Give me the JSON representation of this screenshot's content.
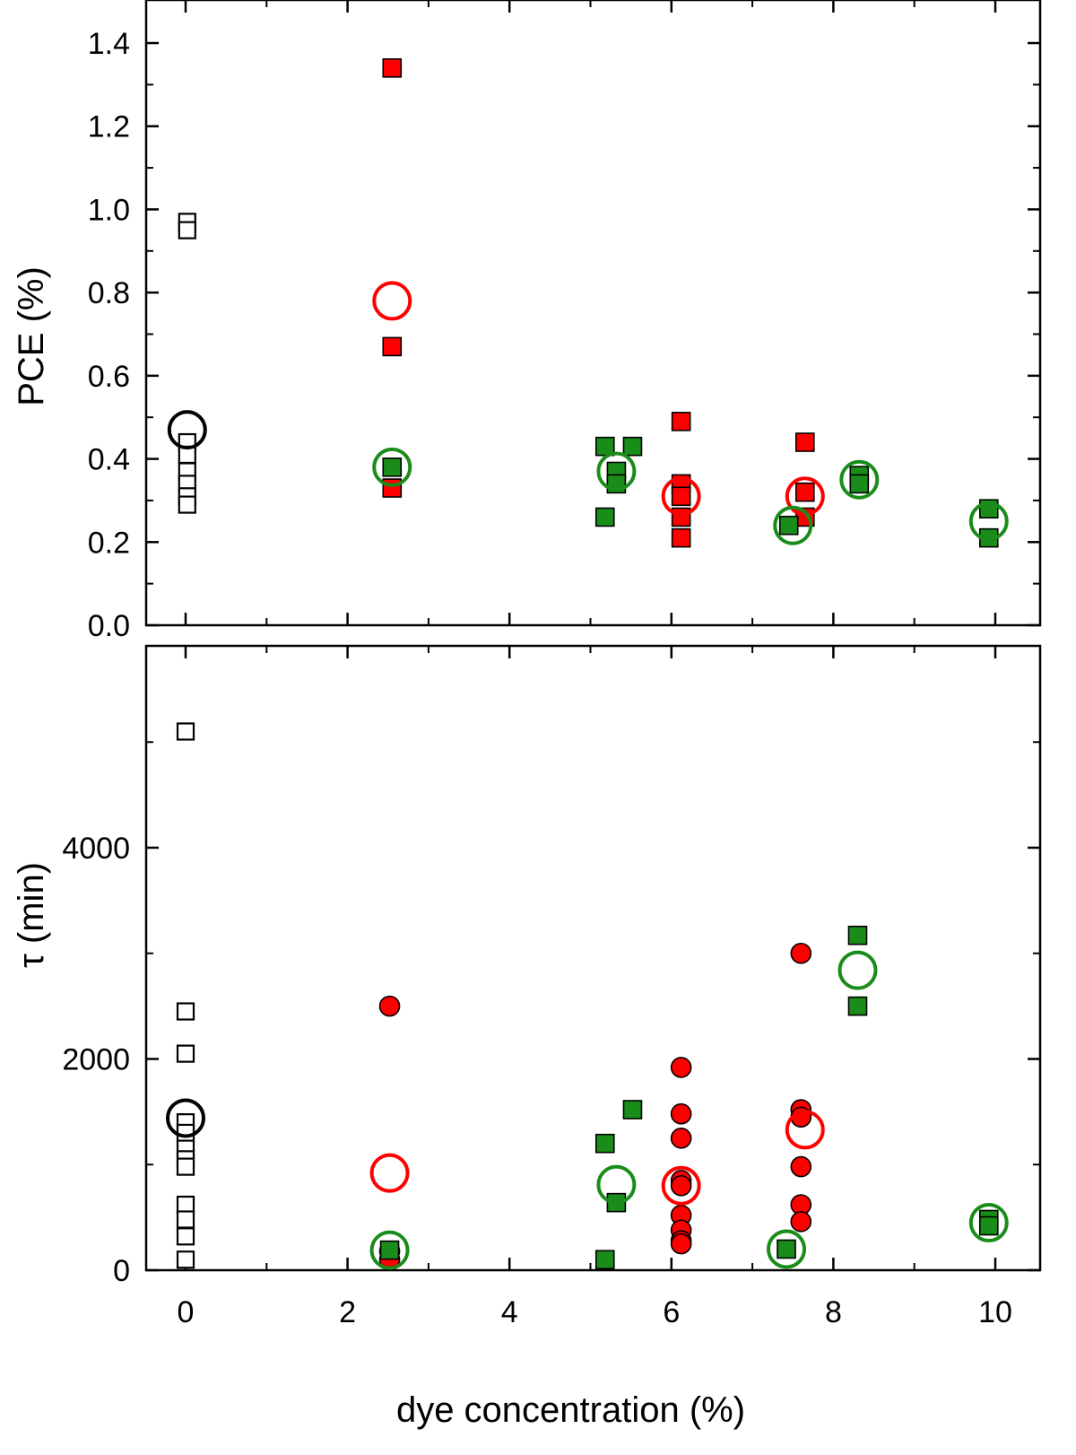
{
  "chart_data": [
    {
      "type": "scatter",
      "panel": "top",
      "title": "",
      "xlabel": "",
      "ylabel": "PCE  (%)",
      "xlim": [
        -0.5,
        10.6
      ],
      "ylim": [
        0.0,
        1.5
      ],
      "xticks": [
        0,
        2,
        4,
        6,
        8,
        10
      ],
      "xtick_labels": [
        "",
        "",
        "",
        "",
        "",
        ""
      ],
      "yticks": [
        0.0,
        0.2,
        0.4,
        0.6,
        0.8,
        1.0,
        1.2,
        1.4
      ],
      "ytick_labels": [
        "0.0",
        "0.2",
        "0.4",
        "0.6",
        "0.8",
        "1.0",
        "1.2",
        "1.4"
      ],
      "grid": false,
      "colors": {
        "black": "#000000",
        "red": "#ff0000",
        "green": "#1a8c1a"
      },
      "series": [
        {
          "marker": "open-square",
          "color": "#000000",
          "points": [
            [
              0.02,
              0.97
            ],
            [
              0.02,
              0.95
            ],
            [
              0.02,
              0.44
            ],
            [
              0.02,
              0.41
            ],
            [
              0.02,
              0.37
            ],
            [
              0.02,
              0.34
            ],
            [
              0.02,
              0.31
            ],
            [
              0.02,
              0.29
            ]
          ]
        },
        {
          "marker": "open-circle-large",
          "color": "#000000",
          "points": [
            [
              0.02,
              0.47
            ]
          ]
        },
        {
          "marker": "filled-square",
          "color": "#ff0000",
          "points": [
            [
              2.55,
              1.34
            ],
            [
              2.55,
              0.67
            ],
            [
              2.55,
              0.33
            ],
            [
              6.12,
              0.49
            ],
            [
              6.12,
              0.34
            ],
            [
              6.12,
              0.31
            ],
            [
              6.12,
              0.26
            ],
            [
              6.12,
              0.21
            ],
            [
              7.65,
              0.44
            ],
            [
              7.65,
              0.32
            ],
            [
              7.65,
              0.26
            ]
          ]
        },
        {
          "marker": "open-circle-large",
          "color": "#ff0000",
          "points": [
            [
              2.55,
              0.78
            ],
            [
              6.12,
              0.31
            ],
            [
              7.65,
              0.31
            ]
          ]
        },
        {
          "marker": "filled-square",
          "color": "#1a8c1a",
          "points": [
            [
              2.55,
              0.38
            ],
            [
              5.18,
              0.43
            ],
            [
              5.18,
              0.26
            ],
            [
              5.32,
              0.37
            ],
            [
              5.32,
              0.34
            ],
            [
              5.52,
              0.43
            ],
            [
              7.45,
              0.24
            ],
            [
              8.32,
              0.36
            ],
            [
              8.32,
              0.34
            ],
            [
              9.92,
              0.28
            ],
            [
              9.92,
              0.21
            ]
          ]
        },
        {
          "marker": "open-circle-large",
          "color": "#1a8c1a",
          "points": [
            [
              2.55,
              0.38
            ],
            [
              5.32,
              0.37
            ],
            [
              7.5,
              0.24
            ],
            [
              8.32,
              0.35
            ],
            [
              9.92,
              0.25
            ]
          ]
        }
      ]
    },
    {
      "type": "scatter",
      "panel": "bottom",
      "title": "",
      "xlabel": "dye concentration (%)",
      "ylabel": "τ  (min)",
      "xlim": [
        -0.5,
        10.6
      ],
      "ylim": [
        0,
        5700
      ],
      "xticks": [
        0,
        2,
        4,
        6,
        8,
        10
      ],
      "xtick_labels": [
        "0",
        "2",
        "4",
        "6",
        "8",
        "10"
      ],
      "yticks": [
        0,
        2000,
        4000
      ],
      "ytick_labels": [
        "0",
        "2000",
        "4000"
      ],
      "grid": false,
      "colors": {
        "black": "#000000",
        "red": "#ff0000",
        "green": "#1a8c1a"
      },
      "series": [
        {
          "marker": "open-square",
          "color": "#000000",
          "points": [
            [
              0.0,
              5100
            ],
            [
              0.0,
              2450
            ],
            [
              0.0,
              2050
            ],
            [
              0.0,
              1400
            ],
            [
              0.0,
              1300
            ],
            [
              0.0,
              1150
            ],
            [
              0.0,
              1050
            ],
            [
              0.0,
              980
            ],
            [
              0.0,
              620
            ],
            [
              0.0,
              480
            ],
            [
              0.0,
              320
            ],
            [
              0.0,
              100
            ]
          ]
        },
        {
          "marker": "open-circle-large",
          "color": "#000000",
          "points": [
            [
              0.0,
              1440
            ]
          ]
        },
        {
          "marker": "filled-circle",
          "color": "#ff0000",
          "points": [
            [
              2.52,
              2500
            ],
            [
              2.52,
              180
            ],
            [
              2.52,
              100
            ],
            [
              6.12,
              1920
            ],
            [
              6.12,
              1480
            ],
            [
              6.12,
              1250
            ],
            [
              6.12,
              850
            ],
            [
              6.12,
              800
            ],
            [
              6.12,
              520
            ],
            [
              6.12,
              380
            ],
            [
              6.12,
              280
            ],
            [
              6.12,
              250
            ],
            [
              7.6,
              3000
            ],
            [
              7.6,
              1520
            ],
            [
              7.6,
              1450
            ],
            [
              7.6,
              980
            ],
            [
              7.6,
              620
            ],
            [
              7.6,
              460
            ]
          ]
        },
        {
          "marker": "open-circle-large",
          "color": "#ff0000",
          "points": [
            [
              2.52,
              920
            ],
            [
              6.12,
              800
            ],
            [
              7.65,
              1330
            ]
          ]
        },
        {
          "marker": "filled-square",
          "color": "#1a8c1a",
          "points": [
            [
              2.52,
              190
            ],
            [
              5.18,
              1200
            ],
            [
              5.18,
              100
            ],
            [
              5.32,
              640
            ],
            [
              5.52,
              1520
            ],
            [
              7.42,
              200
            ],
            [
              8.3,
              3170
            ],
            [
              8.3,
              2500
            ],
            [
              9.92,
              480
            ],
            [
              9.92,
              420
            ]
          ]
        },
        {
          "marker": "open-circle-large",
          "color": "#1a8c1a",
          "points": [
            [
              2.52,
              190
            ],
            [
              5.32,
              810
            ],
            [
              7.42,
              200
            ],
            [
              8.3,
              2840
            ],
            [
              9.92,
              450
            ]
          ]
        }
      ]
    }
  ]
}
